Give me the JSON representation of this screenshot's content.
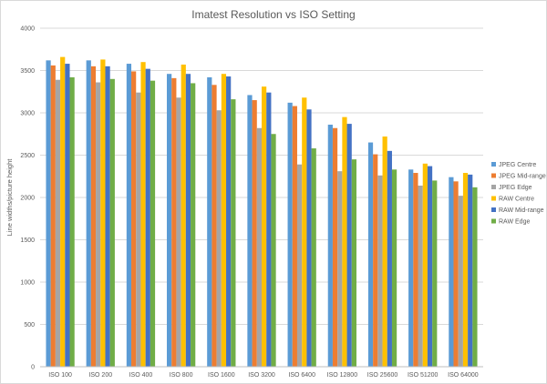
{
  "chart_data": {
    "type": "bar",
    "title": "Imatest Resolution vs ISO Setting",
    "xlabel": "",
    "ylabel": "Line widths/picture height",
    "ylim": [
      0,
      4000
    ],
    "yticks": [
      0,
      500,
      1000,
      1500,
      2000,
      2500,
      3000,
      3500,
      4000
    ],
    "grid": true,
    "legend_position": "right",
    "categories": [
      "ISO 100",
      "ISO 200",
      "ISO 400",
      "ISO 800",
      "ISO 1600",
      "ISO 3200",
      "ISO 6400",
      "ISO 12800",
      "ISO 25600",
      "ISO 51200",
      "ISO 64000"
    ],
    "series": [
      {
        "name": "JPEG Centre",
        "color": "#5b9bd5",
        "values": [
          3620,
          3620,
          3580,
          3460,
          3420,
          3210,
          3120,
          2860,
          2650,
          2330,
          2240
        ]
      },
      {
        "name": "JPEG Mid-range",
        "color": "#ed7d31",
        "values": [
          3560,
          3550,
          3490,
          3410,
          3330,
          3150,
          3080,
          2820,
          2510,
          2290,
          2190
        ]
      },
      {
        "name": "JPEG Edge",
        "color": "#a5a5a5",
        "values": [
          3390,
          3360,
          3240,
          3180,
          3030,
          2820,
          2390,
          2310,
          2260,
          2140,
          2020
        ]
      },
      {
        "name": "RAW Centre",
        "color": "#ffc000",
        "values": [
          3660,
          3630,
          3600,
          3570,
          3460,
          3310,
          3180,
          2950,
          2720,
          2400,
          2290
        ]
      },
      {
        "name": "RAW Mid-range",
        "color": "#4472c4",
        "values": [
          3580,
          3550,
          3520,
          3460,
          3430,
          3240,
          3040,
          2870,
          2550,
          2370,
          2270
        ]
      },
      {
        "name": "RAW Edge",
        "color": "#70ad47",
        "values": [
          3420,
          3400,
          3380,
          3350,
          3160,
          2750,
          2580,
          2450,
          2330,
          2200,
          2120
        ]
      }
    ]
  }
}
